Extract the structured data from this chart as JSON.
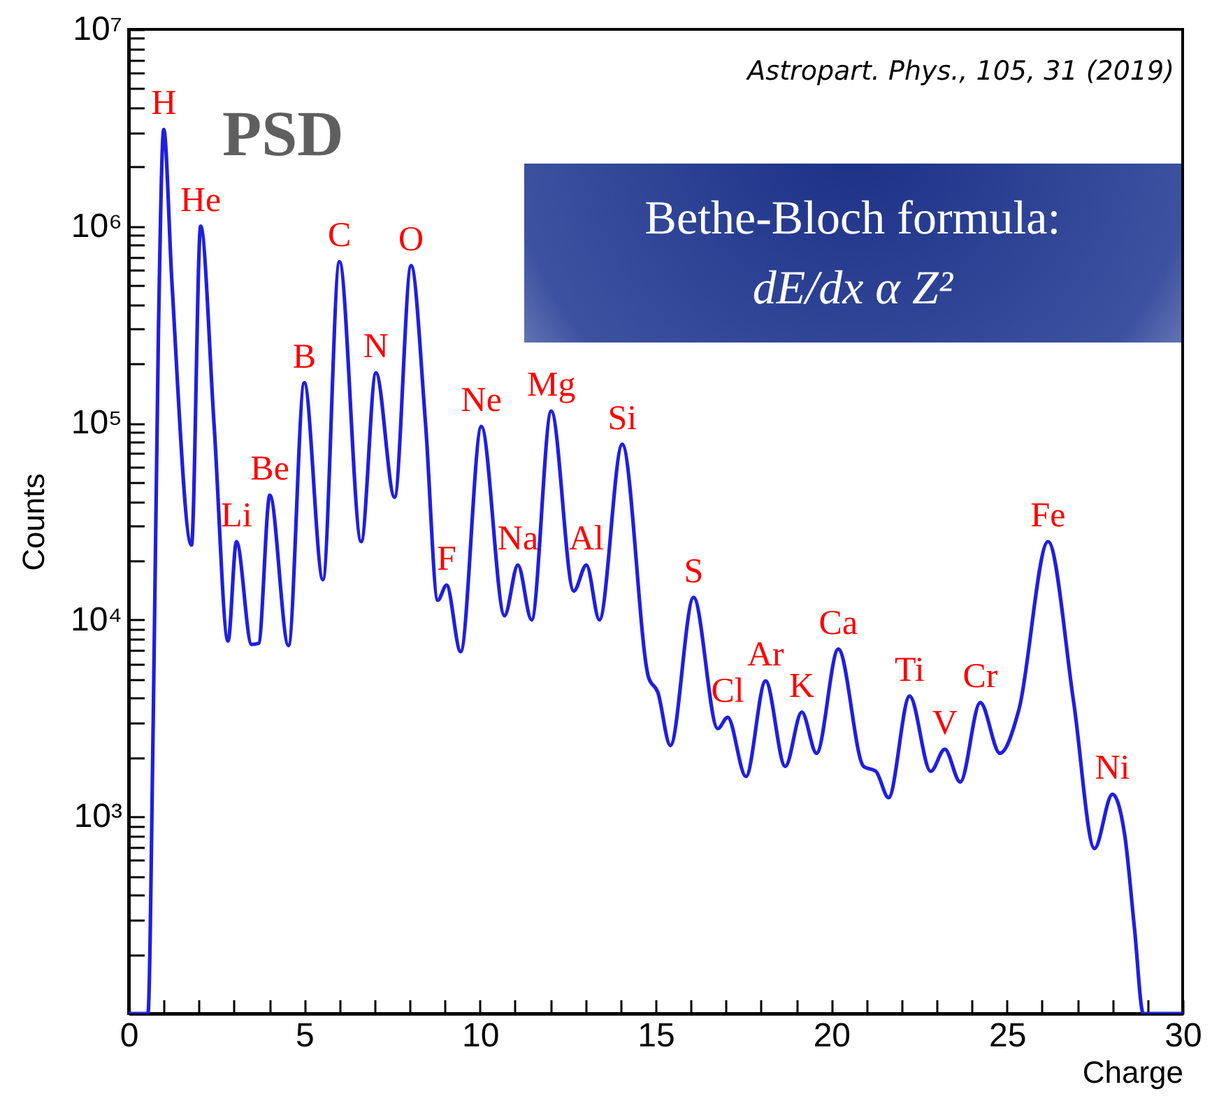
{
  "chart_data": {
    "type": "line",
    "xlabel": "Charge",
    "ylabel": "Counts",
    "log": "y",
    "grid": false,
    "line_style": "solid",
    "marker": "none",
    "xlim": [
      0,
      30
    ],
    "ylim": [
      100,
      10000000
    ],
    "xticks": [
      0,
      {
        "value": 1,
        "label": null
      },
      {
        "value": 2,
        "label": null
      },
      {
        "value": 3,
        "label": null
      },
      {
        "value": 4,
        "label": null
      },
      5,
      {
        "value": 6,
        "label": null
      },
      {
        "value": 7,
        "label": null
      },
      {
        "value": 8,
        "label": null
      },
      {
        "value": 9,
        "label": null
      },
      10,
      {
        "value": 11,
        "label": null
      },
      {
        "value": 12,
        "label": null
      },
      {
        "value": 13,
        "label": null
      },
      {
        "value": 14,
        "label": null
      },
      15,
      {
        "value": 16,
        "label": null
      },
      {
        "value": 17,
        "label": null
      },
      {
        "value": 18,
        "label": null
      },
      {
        "value": 19,
        "label": null
      },
      20,
      {
        "value": 21,
        "label": null
      },
      {
        "value": 22,
        "label": null
      },
      {
        "value": 23,
        "label": null
      },
      {
        "value": 24,
        "label": null
      },
      25,
      {
        "value": 26,
        "label": null
      },
      {
        "value": 27,
        "label": null
      },
      {
        "value": 28,
        "label": null
      },
      {
        "value": 29,
        "label": null
      },
      30
    ],
    "yticks": [
      {
        "value": 200,
        "label": null
      },
      {
        "value": 300,
        "label": null
      },
      {
        "value": 400,
        "label": null
      },
      {
        "value": 500,
        "label": null
      },
      {
        "value": 600,
        "label": null
      },
      {
        "value": 700,
        "label": null
      },
      {
        "value": 800,
        "label": null
      },
      {
        "value": 900,
        "label": null
      },
      {
        "value": 1000,
        "label": "10³"
      },
      {
        "value": 2000,
        "label": null
      },
      {
        "value": 3000,
        "label": null
      },
      {
        "value": 4000,
        "label": null
      },
      {
        "value": 5000,
        "label": null
      },
      {
        "value": 6000,
        "label": null
      },
      {
        "value": 7000,
        "label": null
      },
      {
        "value": 8000,
        "label": null
      },
      {
        "value": 9000,
        "label": null
      },
      {
        "value": 10000,
        "label": "10⁴"
      },
      {
        "value": 20000,
        "label": null
      },
      {
        "value": 30000,
        "label": null
      },
      {
        "value": 40000,
        "label": null
      },
      {
        "value": 50000,
        "label": null
      },
      {
        "value": 60000,
        "label": null
      },
      {
        "value": 70000,
        "label": null
      },
      {
        "value": 80000,
        "label": null
      },
      {
        "value": 90000,
        "label": null
      },
      {
        "value": 100000,
        "label": "10⁵"
      },
      {
        "value": 200000,
        "label": null
      },
      {
        "value": 300000,
        "label": null
      },
      {
        "value": 400000,
        "label": null
      },
      {
        "value": 500000,
        "label": null
      },
      {
        "value": 600000,
        "label": null
      },
      {
        "value": 700000,
        "label": null
      },
      {
        "value": 800000,
        "label": null
      },
      {
        "value": 900000,
        "label": null
      },
      {
        "value": 1000000,
        "label": "10⁶"
      },
      {
        "value": 2000000,
        "label": null
      },
      {
        "value": 3000000,
        "label": null
      },
      {
        "value": 4000000,
        "label": null
      },
      {
        "value": 5000000,
        "label": null
      },
      {
        "value": 6000000,
        "label": null
      },
      {
        "value": 7000000,
        "label": null
      },
      {
        "value": 8000000,
        "label": null
      },
      {
        "value": 9000000,
        "label": null
      },
      {
        "value": 10000000,
        "label": "10⁷"
      }
    ],
    "series": [
      {
        "color": "#1f1fe0",
        "x": [
          0,
          0.55,
          0.7,
          0.85,
          1.0,
          1.23,
          1.79,
          2.05,
          2.43,
          2.83,
          3.07,
          3.5,
          3.7,
          4.02,
          4.55,
          5.0,
          5.53,
          6.0,
          6.62,
          7.04,
          7.57,
          8.04,
          8.45,
          8.8,
          9.05,
          9.45,
          10.04,
          10.7,
          11.08,
          11.47,
          12.03,
          12.67,
          13.03,
          13.4,
          14.05,
          14.8,
          15.06,
          15.42,
          16.08,
          16.77,
          17.05,
          17.57,
          18.13,
          18.69,
          19.16,
          19.58,
          20.2,
          20.92,
          21.27,
          21.63,
          22.23,
          22.83,
          23.23,
          23.67,
          24.24,
          24.8,
          25.34,
          26.17,
          26.9,
          27.49,
          28.0,
          28.35,
          28.63,
          28.88,
          30
        ],
        "values": [
          100,
          100,
          3000,
          300000,
          3100000,
          530000,
          24000,
          1000000,
          100000,
          7800,
          25000,
          7500,
          7600,
          43000,
          7400,
          160000,
          16000,
          660000,
          25000,
          180000,
          42000,
          630000,
          100000,
          12600,
          15000,
          6900,
          96000,
          10500,
          19000,
          10000,
          115000,
          14000,
          19000,
          10000,
          78000,
          5100,
          4300,
          2300,
          13000,
          2800,
          3200,
          1600,
          4900,
          1800,
          3400,
          2100,
          7100,
          1800,
          1700,
          1250,
          4100,
          1700,
          2200,
          1500,
          3800,
          2100,
          3500,
          25000,
          3800,
          690,
          1300,
          810,
          270,
          100,
          100
        ]
      }
    ],
    "annotations": [
      "Astropart. Phys., 105, 31 (2019)",
      "PSD",
      "Bethe-Bloch formula:",
      "dE/dx α Z²",
      {
        "text": "H",
        "x": 1.0,
        "y": 3100000
      },
      {
        "text": "He",
        "x": 2.05,
        "y": 1000000
      },
      {
        "text": "Li",
        "x": 3.07,
        "y": 25000
      },
      {
        "text": "Be",
        "x": 4.02,
        "y": 43000
      },
      {
        "text": "B",
        "x": 5.0,
        "y": 160000
      },
      {
        "text": "C",
        "x": 6.0,
        "y": 660000
      },
      {
        "text": "N",
        "x": 7.04,
        "y": 180000
      },
      {
        "text": "O",
        "x": 8.04,
        "y": 630000
      },
      {
        "text": "F",
        "x": 9.05,
        "y": 15000
      },
      {
        "text": "Ne",
        "x": 10.04,
        "y": 96000
      },
      {
        "text": "Na",
        "x": 11.08,
        "y": 19000
      },
      {
        "text": "Mg",
        "x": 12.03,
        "y": 115000
      },
      {
        "text": "Al",
        "x": 13.03,
        "y": 19000
      },
      {
        "text": "Si",
        "x": 14.05,
        "y": 78000
      },
      {
        "text": "S",
        "x": 16.08,
        "y": 13000
      },
      {
        "text": "Cl",
        "x": 17.05,
        "y": 3200
      },
      {
        "text": "Ar",
        "x": 18.13,
        "y": 4900
      },
      {
        "text": "K",
        "x": 19.16,
        "y": 3400
      },
      {
        "text": "Ca",
        "x": 20.2,
        "y": 7100
      },
      {
        "text": "Ti",
        "x": 22.23,
        "y": 4100
      },
      {
        "text": "V",
        "x": 23.23,
        "y": 2200
      },
      {
        "text": "Cr",
        "x": 24.24,
        "y": 3800
      },
      {
        "text": "Fe",
        "x": 26.17,
        "y": 25000
      },
      {
        "text": "Ni",
        "x": 28.0,
        "y": 1300
      }
    ]
  }
}
